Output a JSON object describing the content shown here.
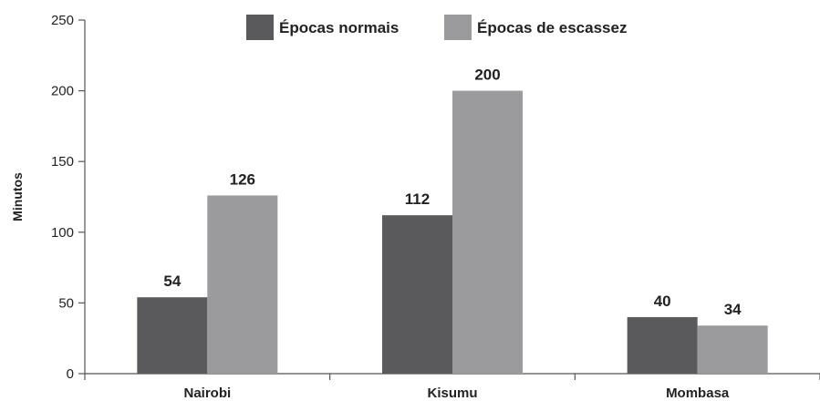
{
  "chart_data": {
    "type": "bar",
    "title": "",
    "xlabel": "",
    "ylabel": "Minutos",
    "ylim": [
      0,
      250
    ],
    "yticks": [
      0,
      50,
      100,
      150,
      200,
      250
    ],
    "categories": [
      "Nairobi",
      "Kisumu",
      "Mombasa"
    ],
    "series": [
      {
        "name": "Épocas normais",
        "values": [
          54,
          112,
          40
        ],
        "color": "#5a5a5c"
      },
      {
        "name": "Épocas de escassez",
        "values": [
          126,
          200,
          34
        ],
        "color": "#9b9b9d"
      }
    ],
    "legend": "top-center",
    "grid": false
  }
}
